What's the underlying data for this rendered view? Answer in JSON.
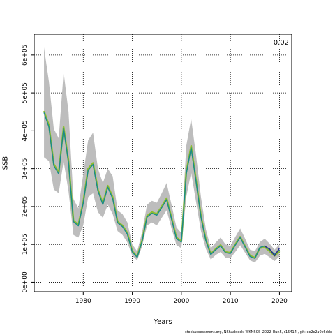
{
  "chart_data": {
    "type": "line",
    "xlabel": "Years",
    "ylabel": "SSB",
    "annotation": "0.02",
    "xlim": [
      1970,
      2022.5
    ],
    "ylim": [
      -25000,
      655000
    ],
    "grid": true,
    "x_ticks": [
      1980,
      1990,
      2000,
      2010,
      2020
    ],
    "x_tick_labels": [
      "1980",
      "1990",
      "2000",
      "2010",
      "2020"
    ],
    "y_ticks": [
      0,
      100000,
      200000,
      300000,
      400000,
      500000,
      600000
    ],
    "y_tick_labels": [
      "0e+00",
      "1e+05",
      "2e+05",
      "3e+05",
      "4e+05",
      "5e+05",
      "6e+05"
    ],
    "x": [
      1972,
      1973,
      1974,
      1975,
      1976,
      1977,
      1978,
      1979,
      1980,
      1981,
      1982,
      1983,
      1984,
      1985,
      1986,
      1987,
      1988,
      1989,
      1990,
      1991,
      1992,
      1993,
      1994,
      1995,
      1996,
      1997,
      1998,
      1999,
      2000,
      2001,
      2002,
      2003,
      2004,
      2005,
      2006,
      2007,
      2008,
      2009,
      2010,
      2011,
      2012,
      2013,
      2014,
      2015,
      2016,
      2017,
      2018,
      2019,
      2020
    ],
    "series": [
      {
        "color": "#8bbd2f",
        "values": [
          452000,
          415000,
          312000,
          290000,
          410000,
          320000,
          163000,
          152000,
          212000,
          300000,
          315000,
          245000,
          208000,
          255000,
          225000,
          160000,
          150000,
          130000,
          82000,
          68000,
          110000,
          175000,
          185000,
          180000,
          200000,
          222000,
          170000,
          118000,
          108000,
          290000,
          360000,
          270000,
          175000,
          112000,
          75000,
          88000,
          98000,
          80000,
          78000,
          100000,
          120000,
          95000,
          70000,
          65000,
          90000,
          93000,
          82000,
          70000,
          82000
        ]
      },
      {
        "color": "#1a8a8a",
        "values": [
          448000,
          410000,
          308000,
          286000,
          406000,
          316000,
          160000,
          149000,
          209000,
          296000,
          311000,
          241000,
          205000,
          251000,
          221000,
          157000,
          147000,
          127000,
          80000,
          66000,
          108000,
          172000,
          182000,
          177000,
          197000,
          218000,
          167000,
          115000,
          106000,
          286000,
          355000,
          266000,
          172000,
          110000,
          73000,
          86000,
          96000,
          78000,
          76000,
          98000,
          118000,
          93000,
          68000,
          63000,
          92000,
          96000,
          86000,
          74000,
          86000
        ]
      },
      {
        "color": "#2a2a8c",
        "values": [
          null,
          null,
          null,
          null,
          null,
          null,
          null,
          null,
          null,
          null,
          null,
          null,
          null,
          null,
          null,
          null,
          null,
          null,
          null,
          null,
          null,
          null,
          null,
          null,
          null,
          null,
          null,
          null,
          null,
          null,
          null,
          null,
          null,
          null,
          null,
          null,
          null,
          null,
          null,
          null,
          null,
          null,
          null,
          null,
          null,
          95000,
          88000,
          70000,
          90000
        ]
      }
    ],
    "band": {
      "name": "confidence interval",
      "color": "#bdbdbd",
      "lower": [
        330000,
        320000,
        245000,
        235000,
        320000,
        240000,
        125000,
        118000,
        150000,
        225000,
        235000,
        185000,
        170000,
        205000,
        180000,
        135000,
        125000,
        105000,
        70000,
        58000,
        95000,
        150000,
        158000,
        150000,
        170000,
        190000,
        142000,
        98000,
        90000,
        225000,
        290000,
        212000,
        135000,
        88000,
        60000,
        72000,
        80000,
        65000,
        64000,
        80000,
        98000,
        78000,
        58000,
        52000,
        70000,
        75000,
        66000,
        56000,
        68000
      ],
      "upper": [
        620000,
        530000,
        405000,
        380000,
        555000,
        450000,
        220000,
        195000,
        285000,
        375000,
        395000,
        300000,
        262000,
        300000,
        280000,
        190000,
        180000,
        158000,
        100000,
        82000,
        132000,
        205000,
        215000,
        210000,
        235000,
        262000,
        205000,
        145000,
        130000,
        360000,
        432000,
        335000,
        225000,
        140000,
        90000,
        105000,
        118000,
        100000,
        96000,
        120000,
        142000,
        115000,
        86000,
        82000,
        106000,
        115000,
        102000,
        86000,
        100000
      ]
    }
  },
  "footer": {
    "text": "stockassessment.org, NShaddock_WKNSCS_2022_Run5, r15414 , git: ec2c2a0c6dde"
  }
}
